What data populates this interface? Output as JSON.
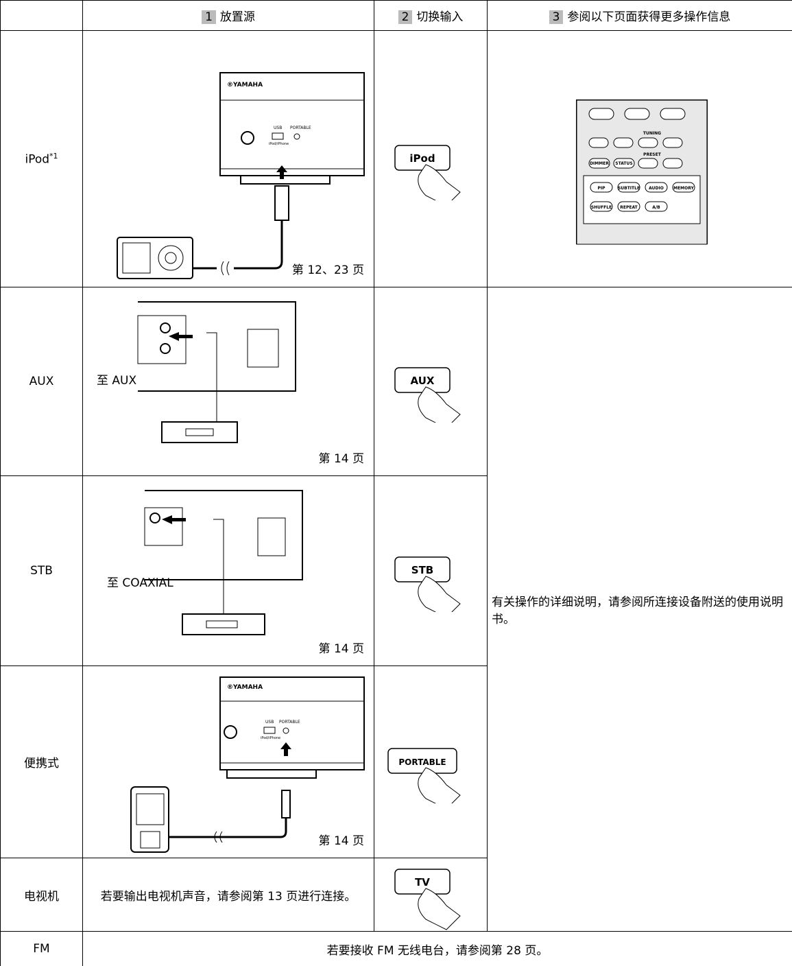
{
  "header": {
    "col1_num": "1",
    "col1": "放置源",
    "col2_num": "2",
    "col2": "切换输入",
    "col3_num": "3",
    "col3": "参阅以下页面获得更多操作信息"
  },
  "rows": [
    {
      "source": "iPod",
      "footnote": "*1",
      "page": "第 12、23 页",
      "button": "iPod",
      "brand": "®YAMAHA",
      "usb": "USB",
      "portable": "PORTABLE",
      "iphone": "iPod/iPhone"
    },
    {
      "source": "AUX",
      "page": "第 14 页",
      "button": "AUX",
      "to": "至 AUX"
    },
    {
      "source": "STB",
      "page": "第 14 页",
      "button": "STB",
      "to": "至 COAXIAL"
    },
    {
      "source": "便携式",
      "page": "第 14 页",
      "button": "PORTABLE",
      "brand": "®YAMAHA",
      "usb": "USB",
      "portable": "PORTABLE",
      "iphone": "iPod/iPhone"
    },
    {
      "source": "电视机",
      "text": "若要输出电视机声音，请参阅第 13 页进行连接。",
      "button": "TV"
    },
    {
      "source": "FM",
      "text": "若要接收 FM 无线电台，请参阅第 28 页。"
    }
  ],
  "note": "有关操作的详细说明，请参阅所连接设备附送的使用说明书。",
  "remote": {
    "tuning": "TUNING",
    "preset": "PRESET",
    "dimmer": "DIMMER",
    "status": "STATUS",
    "pip": "PIP",
    "subtitle": "SUBTITLE",
    "audio": "AUDIO",
    "memory": "MEMORY",
    "shuffle": "SHUFFLE",
    "repeat": "REPEAT",
    "ab": "A/B"
  }
}
